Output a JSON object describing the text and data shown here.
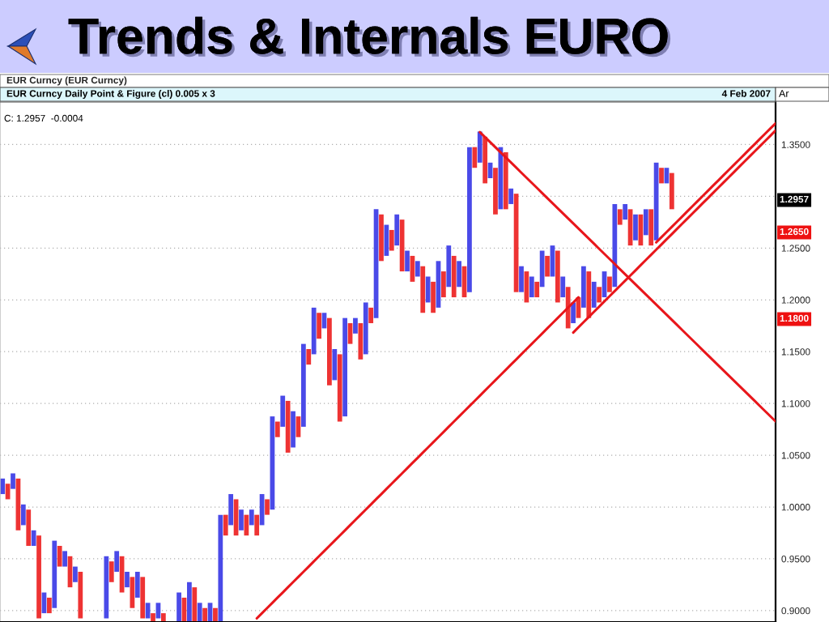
{
  "chart_data": {
    "type": "bar",
    "title": "Trends & Internals EURO",
    "subtitle": "EUR Curncy (EUR Curncy)",
    "categories": [
      null,
      null,
      null,
      null,
      null,
      null,
      null,
      null,
      null,
      null,
      null,
      null,
      null,
      null,
      null,
      null,
      null,
      null,
      null,
      null,
      null,
      null,
      null,
      null,
      null,
      null,
      null,
      null,
      null,
      null,
      null,
      null,
      null,
      null,
      null,
      null,
      null,
      null,
      null,
      null,
      null,
      null,
      null,
      null,
      null,
      null,
      null,
      null,
      null,
      null,
      null,
      null,
      null,
      null,
      null,
      null,
      null,
      null,
      null,
      null,
      null,
      null,
      null,
      null,
      null,
      null,
      null,
      null,
      null,
      null,
      null,
      null,
      null,
      null,
      null,
      null,
      null,
      null,
      null,
      null,
      null,
      null,
      null,
      null,
      null,
      null,
      null,
      null,
      null,
      null,
      null,
      null,
      null,
      null,
      null,
      null,
      null,
      null,
      null,
      null,
      null,
      null,
      null,
      null,
      null,
      null,
      null,
      null,
      null,
      null,
      null,
      null,
      null,
      null,
      null,
      null,
      null,
      null,
      null,
      null,
      null,
      null,
      null,
      null,
      null,
      null,
      null,
      null,
      null,
      null,
      null,
      null,
      null,
      null,
      null,
      null,
      null,
      null,
      null,
      null,
      null,
      null,
      null,
      null,
      null,
      null,
      null,
      null,
      null,
      null
    ],
    "series": [
      {
        "color": "#4a4ae8",
        "values": [
          0.015,
          null,
          0.015,
          null,
          0.02,
          null,
          0.015,
          null,
          0.02,
          null,
          0.065,
          null,
          0.015,
          null,
          0.015,
          null,
          null,
          null,
          null,
          null,
          0.06,
          null,
          0.02,
          null,
          0.015,
          null,
          0.025,
          null,
          0.015,
          null,
          0.015,
          null,
          null,
          null,
          0.0285,
          null,
          0.0385,
          null,
          0.0185,
          null,
          0.0185,
          null,
          0.1035,
          null,
          0.03,
          null,
          0.02,
          null,
          0.015,
          null,
          0.03,
          null,
          0.09,
          null,
          0.03,
          null,
          0.035,
          null,
          0.08,
          null,
          0.045,
          null,
          0.015,
          null,
          0.03,
          null,
          0.095,
          null,
          0.015,
          null,
          0.05,
          null,
          0.105,
          null,
          0.03,
          null,
          0.03,
          null,
          0.02,
          null,
          0.015,
          null,
          0.025,
          null,
          0.045,
          null,
          0.04,
          null,
          0.025,
          null,
          0.14,
          null,
          0.03,
          null,
          0.015,
          null,
          0.06,
          null,
          0.015,
          null,
          0.025,
          null,
          0.02,
          null,
          0.035,
          null,
          0.03,
          null,
          0.02,
          null,
          0.02,
          null,
          0.04,
          null,
          0.025,
          null,
          0.025,
          null,
          0.08,
          null,
          0.015,
          null,
          0.025,
          null,
          0.025,
          null,
          0.075,
          null,
          0.015,
          null,
          null,
          null,
          null,
          null,
          null,
          null,
          null,
          null,
          null,
          null,
          null,
          null,
          null,
          null,
          null,
          null,
          null,
          null,
          null,
          null
        ],
        "base": [
          1.0125,
          null,
          1.0175,
          null,
          0.9825,
          null,
          0.9625,
          null,
          0.8975,
          null,
          0.9025,
          null,
          0.9425,
          null,
          0.9275,
          null,
          null,
          null,
          null,
          null,
          0.8925,
          null,
          0.9375,
          null,
          0.9225,
          null,
          0.9125,
          null,
          0.8925,
          null,
          0.8925,
          null,
          null,
          null,
          0.889,
          null,
          0.889,
          null,
          0.889,
          null,
          0.889,
          null,
          0.889,
          null,
          0.9825,
          null,
          0.9775,
          null,
          0.9825,
          null,
          0.9825,
          null,
          0.9975,
          null,
          1.0775,
          null,
          1.0575,
          null,
          1.0775,
          null,
          1.1475,
          null,
          1.1725,
          null,
          1.1225,
          null,
          1.0875,
          null,
          1.1675,
          null,
          1.1475,
          null,
          1.1825,
          null,
          1.2425,
          null,
          1.2525,
          null,
          1.2275,
          null,
          1.2225,
          null,
          1.1975,
          null,
          1.1925,
          null,
          1.2125,
          null,
          1.2125,
          null,
          1.2075,
          null,
          1.3325,
          null,
          1.3175,
          null,
          1.2875,
          null,
          1.2925,
          null,
          1.2075,
          null,
          1.2025,
          null,
          1.2125,
          null,
          1.2225,
          null,
          1.2025,
          null,
          1.1775,
          null,
          1.1925,
          null,
          1.1925,
          null,
          1.2025,
          null,
          1.2125,
          null,
          1.2775,
          null,
          1.2575,
          null,
          1.2625,
          null,
          1.2575,
          null,
          1.3125,
          null,
          null,
          null,
          null,
          null,
          null,
          null,
          null,
          null,
          null,
          null,
          null,
          null,
          null,
          null,
          null,
          null,
          null,
          null,
          null,
          null
        ]
      },
      {
        "color": "#ee3333",
        "values": [
          null,
          0.015,
          null,
          0.05,
          null,
          0.035,
          null,
          0.08,
          null,
          0.015,
          null,
          0.02,
          null,
          0.03,
          null,
          0.045,
          null,
          null,
          null,
          null,
          null,
          0.02,
          null,
          0.035,
          null,
          0.03,
          null,
          0.04,
          null,
          0.0085,
          null,
          0.0085,
          null,
          null,
          null,
          0.0235,
          null,
          0.0335,
          null,
          0.0135,
          null,
          0.0135,
          null,
          0.02,
          null,
          0.035,
          null,
          0.02,
          null,
          0.02,
          null,
          0.015,
          null,
          0.015,
          null,
          0.05,
          null,
          0.02,
          null,
          0.015,
          null,
          0.025,
          null,
          0.065,
          null,
          0.065,
          null,
          0.02,
          null,
          0.035,
          null,
          0.015,
          null,
          0.045,
          null,
          0.02,
          null,
          0.05,
          null,
          0.025,
          null,
          0.045,
          null,
          0.03,
          null,
          0.025,
          null,
          0.04,
          null,
          0.03,
          null,
          0.02,
          null,
          0.045,
          null,
          0.045,
          null,
          0.055,
          null,
          0.095,
          null,
          0.03,
          null,
          0.015,
          null,
          0.02,
          null,
          0.05,
          null,
          0.04,
          null,
          0.02,
          null,
          0.045,
          null,
          0.015,
          null,
          0.015,
          null,
          0.015,
          null,
          0.035,
          null,
          0.03,
          null,
          0.035,
          null,
          0.015,
          null,
          0.035,
          null,
          null,
          null,
          null,
          null,
          null,
          null,
          null,
          null,
          null,
          null,
          null,
          null,
          null,
          null,
          null,
          null,
          null,
          null,
          null
        ],
        "base": [
          null,
          1.0075,
          null,
          0.9775,
          null,
          0.9625,
          null,
          0.8925,
          null,
          0.8975,
          null,
          0.9425,
          null,
          0.9225,
          null,
          0.8925,
          null,
          null,
          null,
          null,
          null,
          0.9275,
          null,
          0.9175,
          null,
          0.9025,
          null,
          0.8925,
          null,
          0.889,
          null,
          0.889,
          null,
          null,
          null,
          0.889,
          null,
          0.889,
          null,
          0.889,
          null,
          0.889,
          null,
          0.9725,
          null,
          0.9725,
          null,
          0.9725,
          null,
          0.9725,
          null,
          0.9925,
          null,
          1.0675,
          null,
          1.0525,
          null,
          1.0675,
          null,
          1.1375,
          null,
          1.1625,
          null,
          1.1175,
          null,
          1.0825,
          null,
          1.1575,
          null,
          1.1425,
          null,
          1.1775,
          null,
          1.2375,
          null,
          1.2475,
          null,
          1.2275,
          null,
          1.2175,
          null,
          1.1875,
          null,
          1.1875,
          null,
          1.2025,
          null,
          1.2025,
          null,
          1.2025,
          null,
          1.3275,
          null,
          1.3125,
          null,
          1.2825,
          null,
          1.2875,
          null,
          1.2075,
          null,
          1.1975,
          null,
          1.2025,
          null,
          1.2225,
          null,
          1.1975,
          null,
          1.1725,
          null,
          1.1825,
          null,
          1.1825,
          null,
          1.1975,
          null,
          1.2075,
          null,
          1.2725,
          null,
          1.2525,
          null,
          1.2525,
          null,
          1.2525,
          null,
          1.3125,
          null,
          1.2875,
          null,
          null,
          null,
          null,
          null,
          null,
          null,
          null,
          null,
          null,
          null,
          null,
          null,
          null,
          null,
          null,
          null,
          null,
          null,
          null
        ]
      },
      {
        "type": "line",
        "color": "#e8161b",
        "values": [
          null,
          null,
          null,
          null,
          null,
          null,
          null,
          null,
          null,
          null,
          null,
          null,
          null,
          null,
          null,
          null,
          null,
          null,
          null,
          null,
          null,
          null,
          null,
          null,
          null,
          null,
          null,
          null,
          null,
          null,
          null,
          null,
          null,
          null,
          null,
          null,
          null,
          null,
          null,
          null,
          null,
          null,
          null,
          null,
          null,
          null,
          null,
          null,
          null,
          0.8925,
          0.8975,
          0.9025,
          0.9075,
          0.9125,
          0.9175,
          0.9225,
          0.9275,
          0.9325,
          0.9375,
          0.9425,
          0.9475,
          0.9525,
          0.9575,
          0.9625,
          0.9675,
          0.9725,
          0.9775,
          0.9825,
          0.9875,
          0.9925,
          0.9975,
          1.0025,
          1.0075,
          1.0125,
          1.0175,
          1.0225,
          1.0275,
          1.0325,
          1.0375,
          1.0425,
          1.0475,
          1.0525,
          1.0575,
          1.0625,
          1.0675,
          1.0725,
          1.0775,
          1.0825,
          1.0875,
          1.0925,
          1.0975,
          1.1025,
          1.1075,
          1.1125,
          1.1175,
          1.1225,
          1.1275,
          1.1325,
          1.1375,
          1.1425,
          1.1475,
          1.1525,
          1.1575,
          1.1625,
          1.1675,
          1.1725,
          1.1775,
          1.1825,
          1.1875,
          1.1925,
          1.1975,
          1.2025,
          null,
          null,
          null,
          null,
          null,
          null,
          null,
          null,
          null,
          null,
          null,
          null,
          null,
          null,
          null,
          null,
          null,
          null,
          null,
          null,
          null,
          null,
          null,
          null,
          null,
          null,
          null,
          null,
          null,
          null,
          null,
          null,
          null,
          null,
          null,
          null,
          null,
          null
        ]
      },
      {
        "type": "line",
        "color": "#e8161b",
        "values": [
          null,
          null,
          null,
          null,
          null,
          null,
          null,
          null,
          null,
          null,
          null,
          null,
          null,
          null,
          null,
          null,
          null,
          null,
          null,
          null,
          null,
          null,
          null,
          null,
          null,
          null,
          null,
          null,
          null,
          null,
          null,
          null,
          null,
          null,
          null,
          null,
          null,
          null,
          null,
          null,
          null,
          null,
          null,
          null,
          null,
          null,
          null,
          null,
          null,
          null,
          null,
          null,
          null,
          null,
          null,
          null,
          null,
          null,
          null,
          null,
          null,
          null,
          null,
          null,
          null,
          null,
          null,
          null,
          null,
          null,
          null,
          null,
          null,
          null,
          null,
          null,
          null,
          null,
          null,
          null,
          null,
          null,
          null,
          null,
          null,
          null,
          null,
          null,
          null,
          null,
          null,
          null,
          null,
          null,
          null,
          null,
          null,
          null,
          null,
          null,
          null,
          null,
          null,
          null,
          null,
          null,
          null,
          null,
          null,
          null,
          1.1685,
          1.1735,
          1.1785,
          1.1835,
          1.1885,
          1.1935,
          1.1985,
          1.2035,
          1.2085,
          1.2135,
          1.2185,
          1.2235,
          1.2285,
          1.2335,
          1.2385,
          1.2435,
          1.2485,
          1.2535,
          1.2585,
          1.2635,
          1.2685,
          1.2735,
          1.2785,
          1.2835,
          1.2885,
          1.2935,
          1.2985,
          1.3035,
          1.3085,
          1.3135,
          1.3185,
          1.3235,
          1.3285,
          1.3335,
          1.3385,
          1.3435,
          1.3485,
          1.3535,
          1.3585,
          1.3635
        ]
      },
      {
        "type": "line",
        "color": "#e8161b",
        "values": [
          null,
          null,
          null,
          null,
          null,
          null,
          null,
          null,
          null,
          null,
          null,
          null,
          null,
          null,
          null,
          null,
          null,
          null,
          null,
          null,
          null,
          null,
          null,
          null,
          null,
          null,
          null,
          null,
          null,
          null,
          null,
          null,
          null,
          null,
          null,
          null,
          null,
          null,
          null,
          null,
          null,
          null,
          null,
          null,
          null,
          null,
          null,
          null,
          null,
          null,
          null,
          null,
          null,
          null,
          null,
          null,
          null,
          null,
          null,
          null,
          null,
          null,
          null,
          null,
          null,
          null,
          null,
          null,
          null,
          null,
          null,
          null,
          null,
          null,
          null,
          null,
          null,
          null,
          null,
          null,
          null,
          null,
          null,
          null,
          null,
          null,
          null,
          null,
          null,
          null,
          null,
          null,
          null,
          null,
          null,
          null,
          null,
          null,
          null,
          null,
          null,
          null,
          null,
          null,
          null,
          null,
          null,
          null,
          null,
          null,
          null,
          null,
          null,
          null,
          null,
          null,
          null,
          null,
          null,
          null,
          null,
          null,
          null,
          null,
          null,
          null,
          1.2555,
          1.2605,
          1.2655,
          1.2705,
          1.2755,
          1.2805,
          1.2855,
          1.2905,
          1.2955,
          1.3005,
          1.3055,
          1.3105,
          1.3155,
          1.3205,
          1.3255,
          1.3305,
          1.3355,
          1.3405,
          1.3455,
          1.3505,
          1.3555,
          1.3605,
          1.3655,
          1.3705
        ]
      },
      {
        "type": "line",
        "color": "#e8161b",
        "values": [
          null,
          null,
          null,
          null,
          null,
          null,
          null,
          null,
          null,
          null,
          null,
          null,
          null,
          null,
          null,
          null,
          null,
          null,
          null,
          null,
          null,
          null,
          null,
          null,
          null,
          null,
          null,
          null,
          null,
          null,
          null,
          null,
          null,
          null,
          null,
          null,
          null,
          null,
          null,
          null,
          null,
          null,
          null,
          null,
          null,
          null,
          null,
          null,
          null,
          null,
          null,
          null,
          null,
          null,
          null,
          null,
          null,
          null,
          null,
          null,
          null,
          null,
          null,
          null,
          null,
          null,
          null,
          null,
          null,
          null,
          null,
          null,
          null,
          null,
          null,
          null,
          null,
          null,
          null,
          null,
          null,
          null,
          null,
          null,
          null,
          null,
          null,
          null,
          null,
          null,
          null,
          null,
          1.362,
          1.3571,
          1.3522,
          1.3473,
          1.3424,
          1.3375,
          1.3326,
          1.3277,
          1.3228,
          1.3179,
          1.313,
          1.3081,
          1.3032,
          1.2983,
          1.2934,
          1.2885,
          1.2836,
          1.2787,
          1.2738,
          1.2689,
          1.264,
          1.2591,
          1.2542,
          1.2493,
          1.2444,
          1.2395,
          1.2346,
          1.2297,
          1.2248,
          1.2199,
          1.215,
          1.2101,
          1.2052,
          1.2003,
          1.1954,
          1.1905,
          1.1856,
          1.1807,
          1.1758,
          1.1709,
          1.166,
          1.1611,
          1.1562,
          1.1513,
          1.1464,
          1.1415,
          1.1366,
          1.1317,
          1.1268,
          1.1219,
          1.117,
          1.1121,
          1.1072,
          1.1023,
          1.0974,
          1.0925,
          1.0876,
          1.0827
        ]
      }
    ],
    "ylim": [
      0.889,
      1.391
    ],
    "yticks": [
      {
        "value": 0.9,
        "label": "0.9000"
      },
      {
        "value": 0.95,
        "label": "0.9500"
      },
      {
        "value": 1.0,
        "label": "1.0000"
      },
      {
        "value": 1.05,
        "label": "1.0500"
      },
      {
        "value": 1.1,
        "label": "1.1000"
      },
      {
        "value": 1.15,
        "label": "1.1500"
      },
      {
        "value": 1.2,
        "label": "1.2000"
      },
      {
        "value": 1.25,
        "label": "1.2500"
      },
      {
        "value": 1.3,
        "label": null
      },
      {
        "value": 1.35,
        "label": "1.3500"
      }
    ],
    "grid": "y",
    "tick_labels": "y",
    "line_style": "solid",
    "annotations": [
      "EUR Curncy Daily Point & Figure (cl) 0.005 x 3",
      "4 Feb 2007",
      "Ar",
      "C: 1.2957  -0.0004",
      "1.2957",
      "1.2650",
      "1.1800"
    ]
  }
}
